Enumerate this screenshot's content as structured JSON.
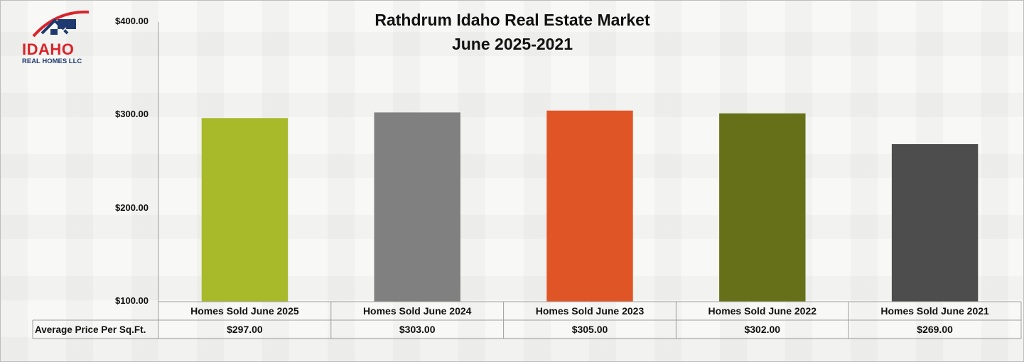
{
  "logo": {
    "line1": "IDAHO",
    "line2": "REAL HOMES LLC",
    "colors": {
      "red": "#d9232a",
      "navy": "#1f3a70"
    }
  },
  "chart_data": {
    "type": "bar",
    "title": "Rathdrum Idaho Real Estate Market",
    "subtitle": "June 2025-2021",
    "categories": [
      "Homes Sold June 2025",
      "Homes Sold June 2024",
      "Homes Sold June 2023",
      "Homes Sold June 2022",
      "Homes Sold June 2021"
    ],
    "series": [
      {
        "name": "Average Price Per Sq.Ft.",
        "values": [
          297,
          303,
          305,
          302,
          269
        ]
      }
    ],
    "value_labels": [
      "$297.00",
      "$303.00",
      "$305.00",
      "$302.00",
      "$269.00"
    ],
    "bar_colors": [
      "#a8b92a",
      "#808080",
      "#e05526",
      "#667018",
      "#4d4d4d"
    ],
    "ylim": [
      100,
      400
    ],
    "yticks": [
      100,
      200,
      300,
      400
    ],
    "ytick_labels": [
      "$100.00",
      "$200.00",
      "$300.00",
      "$400.00"
    ],
    "grid": false,
    "legend": "data-table"
  }
}
